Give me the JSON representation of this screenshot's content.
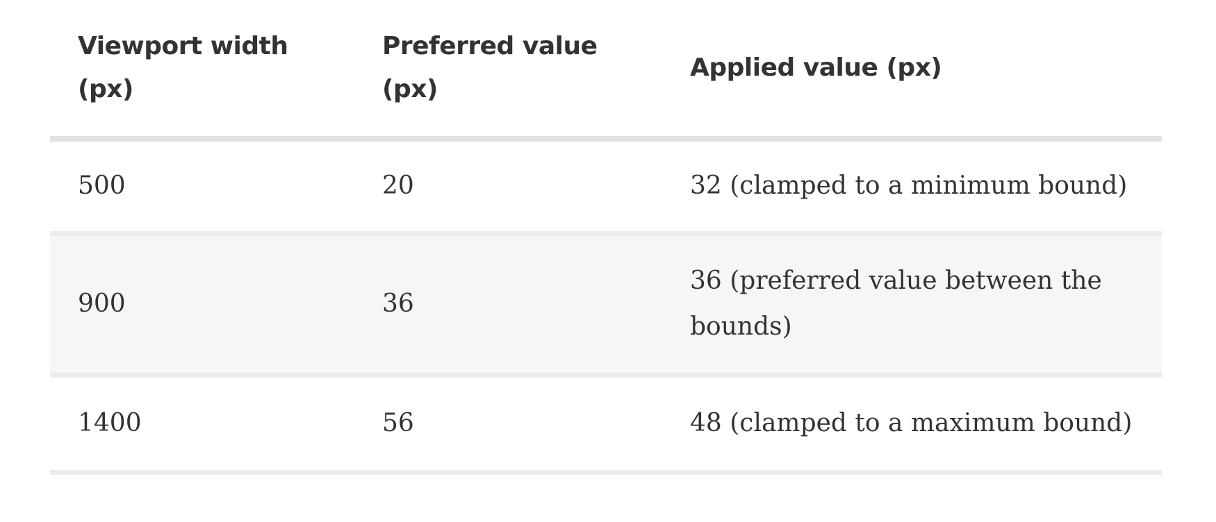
{
  "table": {
    "headers": [
      "Viewport width (px)",
      "Preferred value (px)",
      "Applied value (px)"
    ],
    "rows": [
      [
        "500",
        "20",
        "32 (clamped to a minimum bound)"
      ],
      [
        "900",
        "36",
        "36 (preferred value between the bounds)"
      ],
      [
        "1400",
        "56",
        "48 (clamped to a maximum bound)"
      ]
    ]
  },
  "colors": {
    "text": "#333333",
    "header_rule": "#e2e2e2",
    "row_rule": "#ececec",
    "striped_row": "#f6f6f6"
  }
}
